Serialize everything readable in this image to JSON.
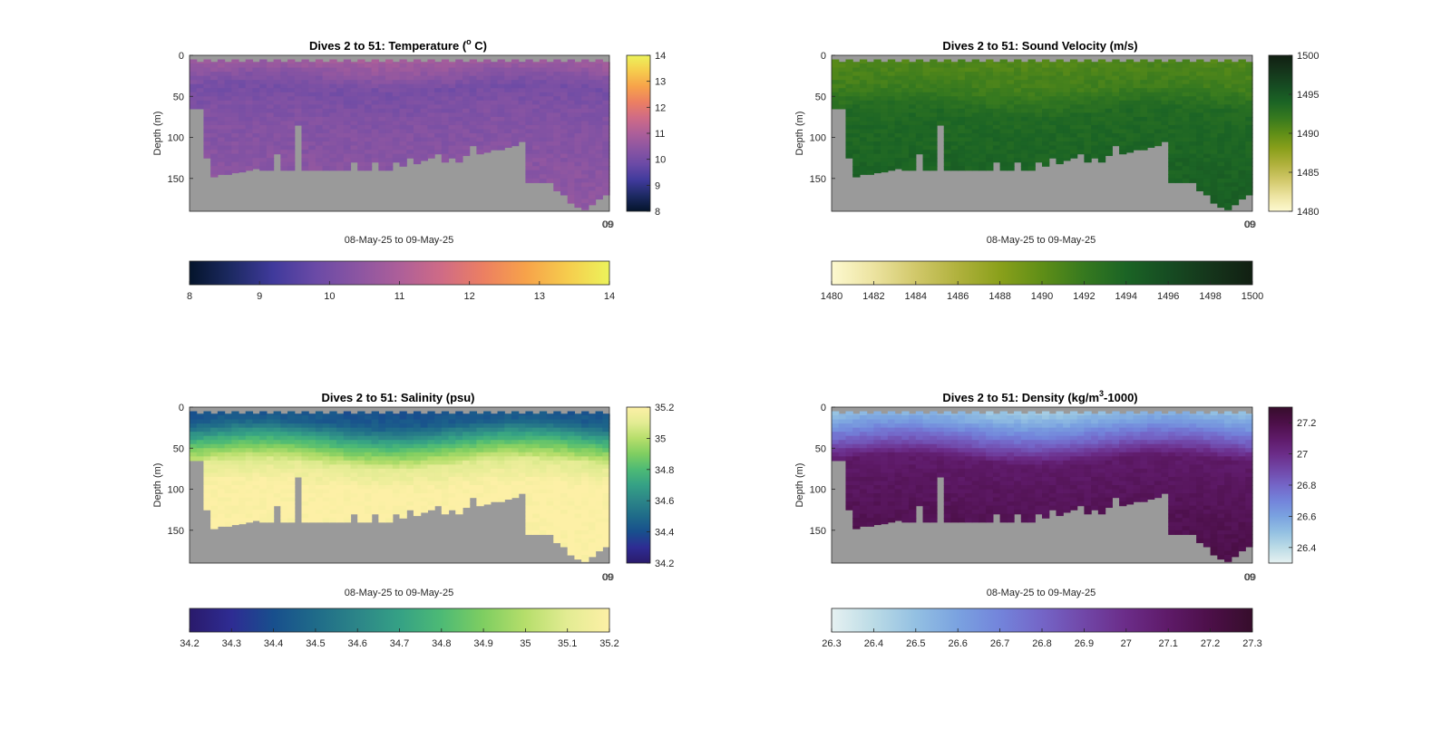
{
  "charts": [
    {
      "title": "Dives 2 to 51: Temperature (",
      "title_sup": "o",
      "title_end": " C)",
      "xlabel": "08-May-25 to 09-May-25",
      "ylabel": "Depth (m)",
      "corner_tick": "09",
      "corner_tick2": "00",
      "colormap": "thermal"
    },
    {
      "title": "Dives 2 to 51: Sound Velocity (m/s)",
      "title_sup": "",
      "title_end": "",
      "xlabel": "08-May-25 to 09-May-25",
      "ylabel": "Depth (m)",
      "corner_tick": "09",
      "corner_tick2": "00",
      "colormap": "speed"
    },
    {
      "title": "Dives 2 to 51: Salinity (psu)",
      "title_sup": "",
      "title_end": "",
      "xlabel": "08-May-25 to 09-May-25",
      "ylabel": "Depth (m)",
      "corner_tick": "09",
      "corner_tick2": "00",
      "colormap": "haline"
    },
    {
      "title": "Dives 2 to 51: Density (kg/m",
      "title_sup": "3",
      "title_end": "-1000)",
      "xlabel": "08-May-25 to 09-May-25",
      "ylabel": "Depth (m)",
      "corner_tick": "09",
      "corner_tick2": "00",
      "colormap": "dense"
    }
  ],
  "chart_data": [
    {
      "type": "heatmap",
      "title": "Dives 2 to 51: Temperature (o C)",
      "variable": "temperature",
      "ylabel": "Depth (m)",
      "xlabel": "08-May-25 to 09-May-25",
      "ylim": [
        0,
        190
      ],
      "y_reversed": true,
      "yticks": [
        0,
        50,
        100,
        150
      ],
      "clim": [
        8,
        14
      ],
      "cbar_ticks": [
        8,
        9,
        10,
        11,
        12,
        13,
        14
      ],
      "hcbar_ticks": [
        8,
        9,
        10,
        11,
        12,
        13,
        14
      ],
      "n_dives": 50,
      "profile_pattern": [
        {
          "depth": 0,
          "value": 10.9
        },
        {
          "depth": 15,
          "value": 10.6
        },
        {
          "depth": 40,
          "value": 10.0
        },
        {
          "depth": 70,
          "value": 10.2
        },
        {
          "depth": 150,
          "value": 10.4
        },
        {
          "depth": 190,
          "value": 10.5
        }
      ]
    },
    {
      "type": "heatmap",
      "title": "Dives 2 to 51: Sound Velocity (m/s)",
      "variable": "sound_velocity",
      "ylabel": "Depth (m)",
      "xlabel": "08-May-25 to 09-May-25",
      "ylim": [
        0,
        190
      ],
      "y_reversed": true,
      "yticks": [
        0,
        50,
        100,
        150
      ],
      "clim": [
        1480,
        1500
      ],
      "cbar_ticks": [
        1480,
        1485,
        1490,
        1495,
        1500
      ],
      "hcbar_ticks": [
        1480,
        1482,
        1484,
        1486,
        1488,
        1490,
        1492,
        1494,
        1496,
        1498,
        1500
      ],
      "n_dives": 50,
      "profile_pattern": [
        {
          "depth": 0,
          "value": 1490.5
        },
        {
          "depth": 40,
          "value": 1491.5
        },
        {
          "depth": 70,
          "value": 1493.5
        },
        {
          "depth": 190,
          "value": 1494.5
        }
      ]
    },
    {
      "type": "heatmap",
      "title": "Dives 2 to 51: Salinity (psu)",
      "variable": "salinity",
      "ylabel": "Depth (m)",
      "xlabel": "08-May-25 to 09-May-25",
      "ylim": [
        0,
        190
      ],
      "y_reversed": true,
      "yticks": [
        0,
        50,
        100,
        150
      ],
      "clim": [
        34.2,
        35.2
      ],
      "cbar_ticks": [
        34.2,
        34.4,
        34.6,
        34.8,
        35,
        35.2
      ],
      "hcbar_ticks": [
        34.2,
        34.3,
        34.4,
        34.5,
        34.6,
        34.7,
        34.8,
        34.9,
        35,
        35.1,
        35.2
      ],
      "n_dives": 50,
      "profile_pattern": [
        {
          "depth": 0,
          "value": 34.4
        },
        {
          "depth": 20,
          "value": 34.45
        },
        {
          "depth": 45,
          "value": 34.8
        },
        {
          "depth": 70,
          "value": 35.1
        },
        {
          "depth": 100,
          "value": 35.2
        },
        {
          "depth": 190,
          "value": 35.2
        }
      ]
    },
    {
      "type": "heatmap",
      "title": "Dives 2 to 51: Density (kg/m3-1000)",
      "variable": "density",
      "ylabel": "Depth (m)",
      "xlabel": "08-May-25 to 09-May-25",
      "ylim": [
        0,
        190
      ],
      "y_reversed": true,
      "yticks": [
        0,
        50,
        100,
        150
      ],
      "clim": [
        26.3,
        27.3
      ],
      "cbar_ticks": [
        26.4,
        26.6,
        26.8,
        27,
        27.2
      ],
      "hcbar_ticks": [
        26.3,
        26.4,
        26.5,
        26.6,
        26.7,
        26.8,
        26.9,
        27,
        27.1,
        27.2,
        27.3
      ],
      "n_dives": 50,
      "profile_pattern": [
        {
          "depth": 0,
          "value": 26.45
        },
        {
          "depth": 20,
          "value": 26.6
        },
        {
          "depth": 45,
          "value": 26.85
        },
        {
          "depth": 65,
          "value": 27.1
        },
        {
          "depth": 120,
          "value": 27.15
        },
        {
          "depth": 190,
          "value": 27.2
        }
      ]
    }
  ],
  "colors": {
    "no_data": "#9a9a9a",
    "axis": "#262626"
  },
  "seafloor_depth_m": [
    65,
    65,
    125,
    148,
    145,
    145,
    143,
    142,
    140,
    138,
    140,
    140,
    120,
    140,
    140,
    85,
    140,
    140,
    140,
    140,
    140,
    140,
    140,
    130,
    140,
    140,
    130,
    140,
    140,
    130,
    135,
    125,
    132,
    128,
    125,
    120,
    130,
    125,
    130,
    122,
    110,
    120,
    118,
    115,
    115,
    112,
    110,
    105,
    155,
    155,
    155,
    155,
    165,
    170,
    180,
    185,
    188,
    182,
    175,
    170
  ]
}
